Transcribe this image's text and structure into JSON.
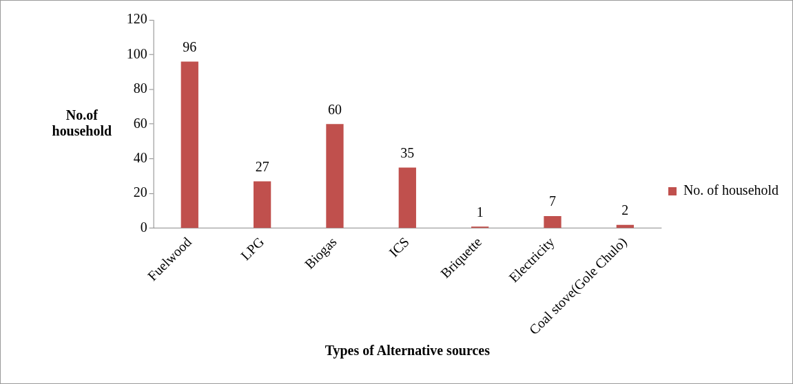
{
  "chart_data": {
    "type": "bar",
    "xlabel": "Types of Alternative sources",
    "ylabel": "No.of household",
    "categories": [
      "Fuelwood",
      "LPG",
      "Biogas",
      "ICS",
      "Briquette",
      "Electricity",
      "Coal stove(Gole Chulo)"
    ],
    "series": [
      {
        "name": "No. of household",
        "color": "#c0504d",
        "values": [
          96,
          27,
          60,
          35,
          1,
          7,
          2
        ]
      }
    ],
    "ylim": [
      0,
      120
    ],
    "yticks": [
      0,
      20,
      40,
      60,
      80,
      100,
      120
    ],
    "grid": false,
    "legend": "right",
    "data_labels": true
  }
}
